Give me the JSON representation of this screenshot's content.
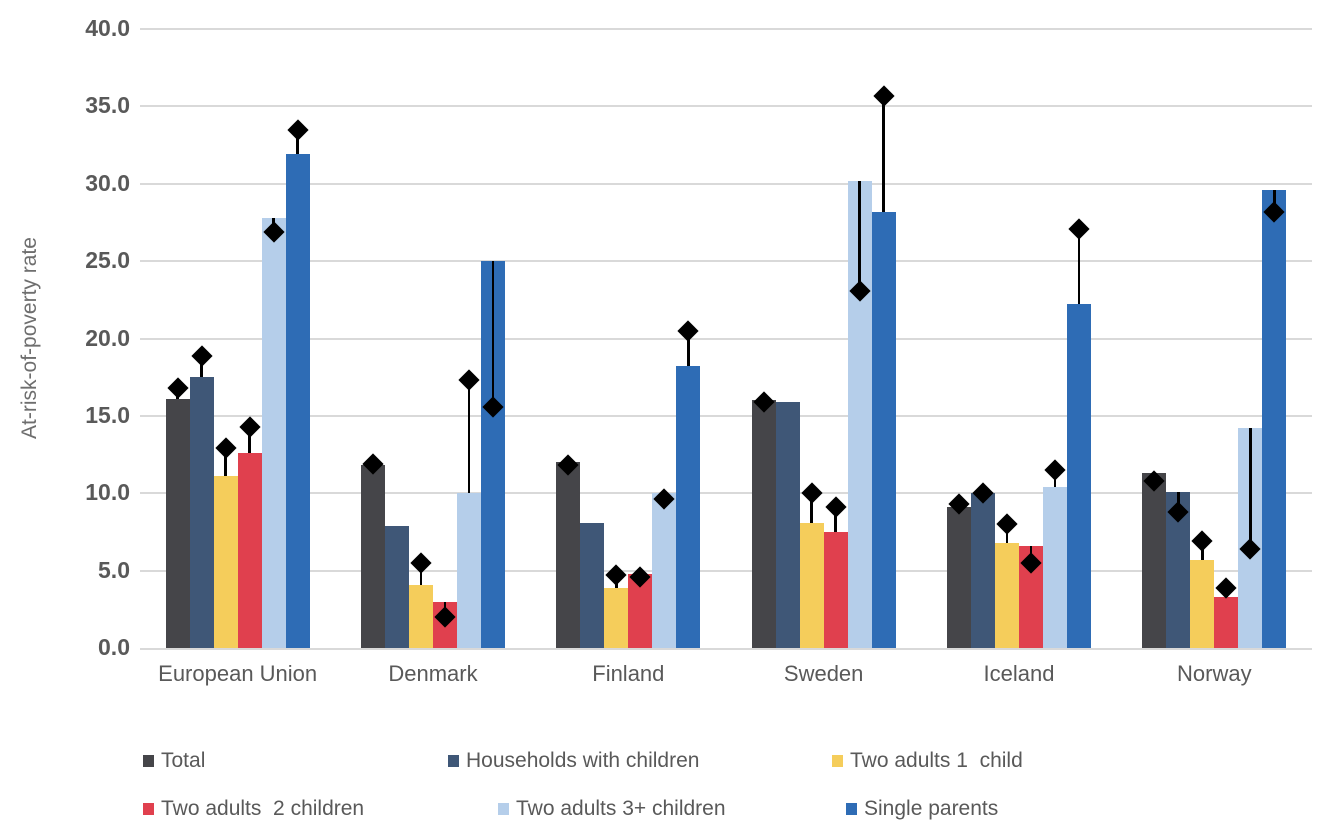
{
  "chart_data": {
    "type": "bar",
    "title": "",
    "xlabel": "",
    "ylabel": "At-risk-of-poverty rate",
    "ylim": [
      0,
      40
    ],
    "ytick_step": 5,
    "ytick_labels": [
      "40.0",
      "35.0",
      "30.0",
      "25.0",
      "20.0",
      "15.0",
      "10.0",
      "5.0",
      "0.0"
    ],
    "grid": true,
    "legend_position": "bottom",
    "categories": [
      "European Union",
      "Denmark",
      "Finland",
      "Sweden",
      "Iceland",
      "Norway"
    ],
    "series": [
      {
        "name": "Total",
        "color": "#454549",
        "values": [
          16.1,
          11.8,
          12.0,
          16.0,
          9.1,
          11.3
        ],
        "markers": [
          16.8,
          11.9,
          11.8,
          15.9,
          9.3,
          10.8
        ]
      },
      {
        "name": "Households with children",
        "color": "#3F5777",
        "values": [
          17.5,
          7.9,
          8.1,
          15.9,
          10.0,
          10.1
        ],
        "markers": [
          18.9,
          null,
          null,
          null,
          10.0,
          8.8
        ]
      },
      {
        "name": "Two adults 1  child",
        "color": "#F5CD5B",
        "values": [
          11.1,
          4.1,
          3.9,
          8.1,
          6.8,
          5.7
        ],
        "markers": [
          12.9,
          5.5,
          4.7,
          10.0,
          8.0,
          6.9
        ]
      },
      {
        "name": "Two adults  2 children",
        "color": "#E0404E",
        "values": [
          12.6,
          3.0,
          4.8,
          7.5,
          6.6,
          3.3
        ],
        "markers": [
          14.3,
          2.0,
          4.6,
          9.1,
          5.5,
          3.9
        ]
      },
      {
        "name": "Two adults 3+ children",
        "color": "#B5CEEA",
        "values": [
          27.8,
          10.0,
          10.0,
          30.2,
          10.4,
          14.2
        ],
        "markers": [
          26.9,
          17.3,
          9.6,
          23.1,
          11.5,
          6.4
        ]
      },
      {
        "name": "Single parents",
        "color": "#2E6CB5",
        "values": [
          31.9,
          25.0,
          18.2,
          28.2,
          22.2,
          29.6
        ],
        "markers": [
          33.5,
          15.6,
          20.5,
          35.7,
          27.1,
          28.2
        ]
      }
    ],
    "marker_style": {
      "shape": "diamond",
      "color": "#000000",
      "note": "black diamond with vertical whisker line connecting to bar top"
    }
  },
  "colors": {
    "background": "#FFFFFF",
    "grid": "#D9D9D9",
    "axis_text": "#595959",
    "axis_title": "#6E6E6E",
    "marker": "#000000"
  }
}
